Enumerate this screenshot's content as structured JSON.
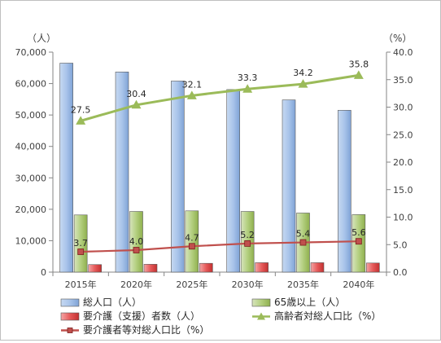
{
  "chart_data": {
    "type": "bar",
    "categories": [
      "2015年",
      "2020年",
      "2025年",
      "2030年",
      "2035年",
      "2040年"
    ],
    "y_left_unit": "（人）",
    "y_right_unit": "（%）",
    "y_left_ticks": [
      "0",
      "10,000",
      "20,000",
      "30,000",
      "40,000",
      "50,000",
      "60,000",
      "70,000"
    ],
    "y_right_ticks": [
      "0.0",
      "5.0",
      "10.0",
      "15.0",
      "20.0",
      "25.0",
      "30.0",
      "35.0",
      "40.0"
    ],
    "ylim_left": [
      0,
      70000
    ],
    "ylim_right": [
      0,
      40
    ],
    "grid": false,
    "legend_position": "bottom",
    "series": [
      {
        "name": "総人口（人）",
        "kind": "bar",
        "axis": "left",
        "color": "#8db3e2",
        "values": [
          66500,
          63700,
          60800,
          58100,
          54800,
          51500
        ]
      },
      {
        "name": "65歳以上（人）",
        "kind": "bar",
        "axis": "left",
        "color": "#9bbb59",
        "values": [
          18200,
          19300,
          19500,
          19300,
          18800,
          18300
        ]
      },
      {
        "name": "要介護（支援）者数（人）",
        "kind": "bar",
        "axis": "left",
        "color": "#e24a4a",
        "values": [
          2400,
          2500,
          2800,
          3000,
          3000,
          2900
        ]
      },
      {
        "name": "高齢者対総人口比（%）",
        "kind": "line",
        "axis": "right",
        "color": "#9bbb59",
        "marker": "triangle",
        "values": [
          27.5,
          30.4,
          32.1,
          33.3,
          34.2,
          35.8
        ],
        "labels": [
          "27.5",
          "30.4",
          "32.1",
          "33.3",
          "34.2",
          "35.8"
        ]
      },
      {
        "name": "要介護者等対総人口比（%）",
        "kind": "line",
        "axis": "right",
        "color": "#c0504d",
        "marker": "square",
        "values": [
          3.7,
          4.0,
          4.7,
          5.2,
          5.4,
          5.6
        ],
        "labels": [
          "3.7",
          "4.0",
          "4.7",
          "5.2",
          "5.4",
          "5.6"
        ]
      }
    ]
  }
}
